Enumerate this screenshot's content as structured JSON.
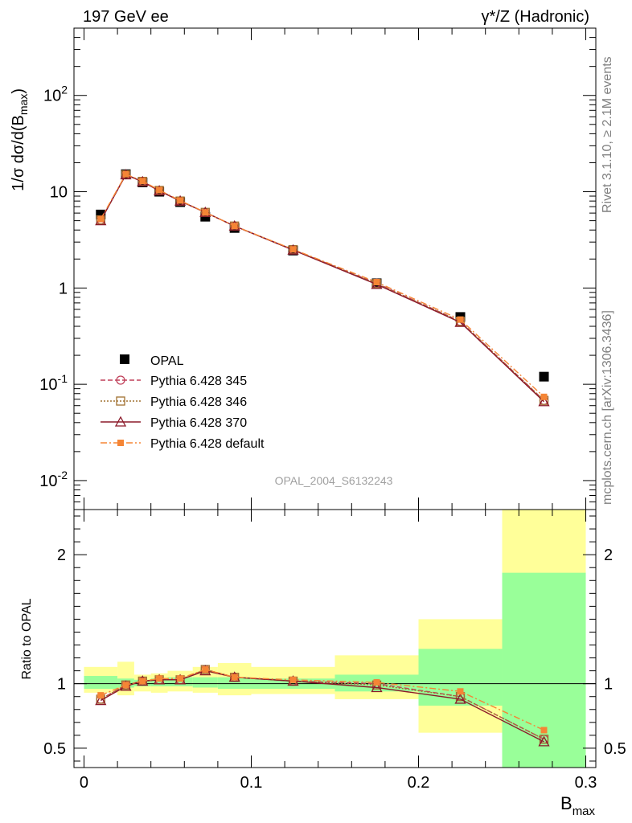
{
  "header": {
    "left_label": "197 GeV ee",
    "right_label": "γ*/Z (Hadronic)"
  },
  "side_labels": {
    "top": "Rivet 3.1.10, ≥ 2.1M events",
    "bottom": "mcplots.cern.ch [arXiv:1306.3436]"
  },
  "analysis_label": "OPAL_2004_S6132243",
  "chart_data": {
    "type": "line",
    "xlabel": "B_max",
    "ylabel": "1/σ dσ/d(B_max)",
    "ratio_ylabel": "Ratio to OPAL",
    "xlim": [
      -0.006,
      0.306
    ],
    "ylim": [
      0.005,
      500
    ],
    "yscale": "log",
    "ratio_ylim": [
      0.35,
      2.35
    ],
    "x_ticks": [
      0,
      0.1,
      0.2,
      0.3
    ],
    "x_tick_labels": [
      "0",
      "0.1",
      "0.2",
      "0.3"
    ],
    "y_ticks": [
      0.01,
      0.1,
      1,
      10,
      100
    ],
    "y_tick_labels": [
      "10^-2",
      "10^-1",
      "1",
      "10",
      "10^2"
    ],
    "ratio_ticks": [
      0.5,
      1,
      2
    ],
    "ratio_tick_labels": [
      "0.5",
      "1",
      "2"
    ],
    "bins": [
      [
        0,
        0.02
      ],
      [
        0.02,
        0.03
      ],
      [
        0.03,
        0.04
      ],
      [
        0.04,
        0.05
      ],
      [
        0.05,
        0.065
      ],
      [
        0.065,
        0.08
      ],
      [
        0.08,
        0.1
      ],
      [
        0.1,
        0.15
      ],
      [
        0.15,
        0.2
      ],
      [
        0.2,
        0.25
      ],
      [
        0.25,
        0.3
      ]
    ],
    "x": [
      0.01,
      0.025,
      0.035,
      0.045,
      0.0575,
      0.0725,
      0.09,
      0.125,
      0.175,
      0.225,
      0.275
    ],
    "data": {
      "name": "OPAL",
      "values": [
        5.8,
        15.2,
        12.5,
        10.0,
        7.8,
        5.5,
        4.2,
        2.45,
        1.12,
        0.5,
        0.12
      ],
      "ratio_band_stat": [
        [
          0.96,
          1.06
        ],
        [
          0.97,
          1.04
        ],
        [
          0.98,
          1.03
        ],
        [
          0.98,
          1.04
        ],
        [
          0.98,
          1.05
        ],
        [
          0.97,
          1.05
        ],
        [
          0.96,
          1.05
        ],
        [
          0.96,
          1.04
        ],
        [
          0.94,
          1.07
        ],
        [
          0.83,
          1.27
        ],
        [
          0.35,
          1.86
        ]
      ],
      "ratio_band_total": [
        [
          0.93,
          1.13
        ],
        [
          0.91,
          1.17
        ],
        [
          0.94,
          1.07
        ],
        [
          0.93,
          1.08
        ],
        [
          0.94,
          1.1
        ],
        [
          0.93,
          1.13
        ],
        [
          0.91,
          1.16
        ],
        [
          0.92,
          1.13
        ],
        [
          0.88,
          1.22
        ],
        [
          0.62,
          1.5
        ],
        [
          0.35,
          2.35
        ]
      ]
    },
    "series": [
      {
        "name": "Pythia 6.428 345",
        "color": "#c0405a",
        "dash": "6,3",
        "marker": "circle-open",
        "values": [
          5.1,
          15.0,
          12.8,
          10.3,
          8.0,
          6.1,
          4.4,
          2.5,
          1.12,
          0.45,
          0.068
        ],
        "ratio": [
          0.88,
          0.99,
          1.02,
          1.03,
          1.03,
          1.11,
          1.05,
          1.02,
          1.0,
          0.9,
          0.57
        ]
      },
      {
        "name": "Pythia 6.428 346",
        "color": "#a07030",
        "dash": "2,2",
        "marker": "square-open",
        "values": [
          5.1,
          15.0,
          12.8,
          10.3,
          8.0,
          6.1,
          4.4,
          2.5,
          1.11,
          0.45,
          0.068
        ],
        "ratio": [
          0.88,
          0.99,
          1.02,
          1.03,
          1.03,
          1.11,
          1.05,
          1.02,
          0.99,
          0.9,
          0.57
        ]
      },
      {
        "name": "Pythia 6.428 370",
        "color": "#8b1a2a",
        "dash": "",
        "marker": "triangle-open",
        "values": [
          5.0,
          15.0,
          12.7,
          10.2,
          8.0,
          6.1,
          4.4,
          2.48,
          1.09,
          0.44,
          0.066
        ],
        "ratio": [
          0.87,
          0.98,
          1.02,
          1.03,
          1.03,
          1.1,
          1.05,
          1.02,
          0.97,
          0.88,
          0.55
        ]
      },
      {
        "name": "Pythia 6.428 default",
        "color": "#f58535",
        "dash": "8,3,2,3",
        "marker": "square-filled",
        "values": [
          5.2,
          15.2,
          12.9,
          10.4,
          8.1,
          6.1,
          4.4,
          2.52,
          1.15,
          0.47,
          0.074
        ],
        "ratio": [
          0.91,
          0.99,
          1.02,
          1.04,
          1.04,
          1.11,
          1.05,
          1.03,
          1.01,
          0.94,
          0.64
        ]
      }
    ]
  },
  "colors": {
    "band_total": "#ffff99",
    "band_stat": "#99ff99",
    "data_marker": "#000000",
    "axis": "#000000",
    "side_text": "#808080"
  }
}
